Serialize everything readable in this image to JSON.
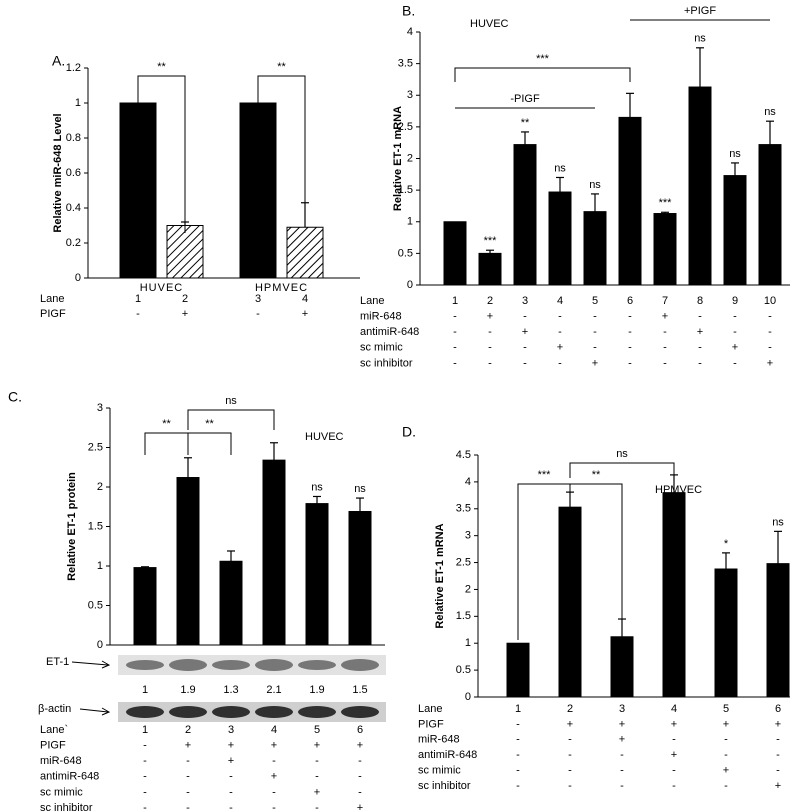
{
  "chart_data": [
    {
      "type": "bar",
      "title": "A.",
      "y_label": "Relative miR-648 Level",
      "color": "#000000",
      "groups": [
        "HUVEC",
        "HPMVEC"
      ],
      "lane_label": "Lane",
      "categories": [
        "1",
        "2",
        "3",
        "4"
      ],
      "values": [
        1,
        0.3,
        1,
        0.29
      ],
      "errors": [
        null,
        0.02,
        null,
        0.14
      ],
      "hatched": [
        false,
        true,
        false,
        true
      ],
      "bar_labels": [
        null,
        null,
        null,
        null
      ],
      "annotations": [
        "**",
        "**"
      ],
      "conditions": [
        {
          "label": "PIGF",
          "marks": [
            "-",
            "+",
            "-",
            "+"
          ]
        }
      ],
      "ylim": [
        0,
        1.2
      ],
      "yticks": [
        0,
        0.2,
        0.4,
        0.6,
        0.8,
        1,
        1.2
      ]
    },
    {
      "type": "bar",
      "title": "B.",
      "note": "HUVEC",
      "y_label": "Relative ET-1 mRNA",
      "color": "#000000",
      "lane_label": "Lane",
      "categories": [
        "1",
        "2",
        "3",
        "4",
        "5",
        "6",
        "7",
        "8",
        "9",
        "10"
      ],
      "values": [
        1,
        0.5,
        2.22,
        1.47,
        1.16,
        2.65,
        1.13,
        3.13,
        1.73,
        2.22
      ],
      "errors": [
        null,
        0.05,
        0.2,
        0.23,
        0.28,
        0.38,
        0.02,
        0.62,
        0.2,
        0.37
      ],
      "bar_labels": [
        null,
        "***",
        "**",
        "ns",
        "ns",
        null,
        "***",
        "ns",
        "ns",
        "ns"
      ],
      "annotations": [
        "***",
        "-PIGF",
        "+PIGF"
      ],
      "conditions": [
        {
          "label": "miR-648",
          "marks": [
            "-",
            "+",
            "-",
            "-",
            "-",
            "-",
            "+",
            "-",
            "-",
            "-"
          ]
        },
        {
          "label": "antimiR-648",
          "marks": [
            "-",
            "-",
            "+",
            "-",
            "-",
            "-",
            "-",
            "+",
            "-",
            "-"
          ]
        },
        {
          "label": "sc mimic",
          "marks": [
            "-",
            "-",
            "-",
            "+",
            "-",
            "-",
            "-",
            "-",
            "+",
            "-"
          ]
        },
        {
          "label": "sc inhibitor",
          "marks": [
            "-",
            "-",
            "-",
            "-",
            "+",
            "-",
            "-",
            "-",
            "-",
            "+"
          ]
        }
      ],
      "ylim": [
        0,
        4
      ],
      "yticks": [
        0,
        0.5,
        1,
        1.5,
        2,
        2.5,
        3,
        3.5,
        4
      ]
    },
    {
      "type": "bar",
      "title": "C.",
      "note": "HUVEC",
      "y_label": "Relative ET-1 protein",
      "color": "#000000",
      "lane_label": "Lane`",
      "categories": [
        "1",
        "2",
        "3",
        "4",
        "5",
        "6"
      ],
      "values": [
        0.98,
        2.12,
        1.06,
        2.34,
        1.79,
        1.69
      ],
      "errors": [
        0.01,
        0.25,
        0.13,
        0.22,
        0.09,
        0.17
      ],
      "bar_labels": [
        null,
        null,
        null,
        null,
        "ns",
        "ns"
      ],
      "annotations": [
        "**",
        "**",
        "ns"
      ],
      "blots": [
        {
          "label": "ET-1",
          "quantification": [
            1,
            1.9,
            1.3,
            2.1,
            1.9,
            1.5
          ]
        },
        {
          "label": "β-actin"
        }
      ],
      "conditions": [
        {
          "label": "PIGF",
          "marks": [
            "-",
            "+",
            "+",
            "+",
            "+",
            "+"
          ]
        },
        {
          "label": "miR-648",
          "marks": [
            "-",
            "-",
            "+",
            "-",
            "-",
            "-"
          ]
        },
        {
          "label": "antimiR-648",
          "marks": [
            "-",
            "-",
            "-",
            "+",
            "-",
            "-"
          ]
        },
        {
          "label": "sc mimic",
          "marks": [
            "-",
            "-",
            "-",
            "-",
            "+",
            "-"
          ]
        },
        {
          "label": "sc inhibitor",
          "marks": [
            "-",
            "-",
            "-",
            "-",
            "-",
            "+"
          ]
        }
      ],
      "ylim": [
        0,
        3
      ],
      "yticks": [
        0,
        0.5,
        1,
        1.5,
        2,
        2.5,
        3
      ]
    },
    {
      "type": "bar",
      "title": "D.",
      "note": "HPMVEC",
      "y_label": "Relative ET-1 mRNA",
      "color": "#000000",
      "lane_label": "Lane",
      "categories": [
        "1",
        "2",
        "3",
        "4",
        "5",
        "6"
      ],
      "values": [
        1,
        3.53,
        1.12,
        3.8,
        2.38,
        2.48
      ],
      "errors": [
        null,
        0.28,
        0.33,
        0.33,
        0.3,
        0.6
      ],
      "bar_labels": [
        null,
        null,
        null,
        null,
        "*",
        "ns"
      ],
      "annotations": [
        "***",
        "**",
        "ns"
      ],
      "conditions": [
        {
          "label": "PIGF",
          "marks": [
            "-",
            "+",
            "+",
            "+",
            "+",
            "+"
          ]
        },
        {
          "label": "miR-648",
          "marks": [
            "-",
            "-",
            "+",
            "-",
            "-",
            "-"
          ]
        },
        {
          "label": "antimiR-648",
          "marks": [
            "-",
            "-",
            "-",
            "+",
            "-",
            "-"
          ]
        },
        {
          "label": "sc mimic",
          "marks": [
            "-",
            "-",
            "-",
            "-",
            "+",
            "-"
          ]
        },
        {
          "label": "sc inhibitor",
          "marks": [
            "-",
            "-",
            "-",
            "-",
            "-",
            "+"
          ]
        }
      ],
      "ylim": [
        0,
        4.5
      ],
      "yticks": [
        0,
        0.5,
        1,
        1.5,
        2,
        2.5,
        3,
        3.5,
        4,
        4.5
      ]
    }
  ]
}
